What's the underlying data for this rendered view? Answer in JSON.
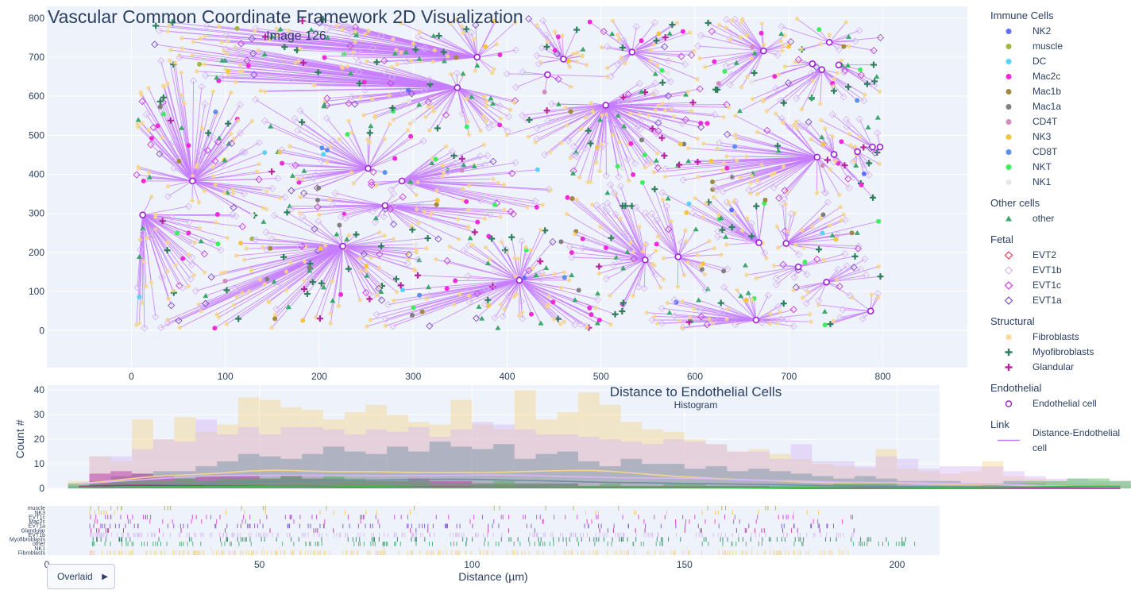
{
  "main": {
    "title": "Vascular Common Coordinate Framework 2D Visualization",
    "subtitle": "Image 126"
  },
  "histogram": {
    "title": "Distance to Endothelial Cells",
    "subtitle": "Histogram",
    "ylabel": "Count #",
    "xlabel": "Distance (µm)"
  },
  "button": {
    "label": "Overlaid",
    "arrow": "▶"
  },
  "legend": [
    {
      "title": "Immune Cells",
      "items": [
        {
          "name": "NK2",
          "symbol": "dot",
          "color": "#636efa"
        },
        {
          "name": "muscle",
          "symbol": "dot",
          "color": "#a3b347"
        },
        {
          "name": "DC",
          "symbol": "dot",
          "color": "#57d3f5"
        },
        {
          "name": "Mac2c",
          "symbol": "dot",
          "color": "#f229d9"
        },
        {
          "name": "Mac1b",
          "symbol": "dot",
          "color": "#a08a40"
        },
        {
          "name": "Mac1a",
          "symbol": "dot",
          "color": "#7f7f7f"
        },
        {
          "name": "CD4T",
          "symbol": "dot",
          "color": "#d48ac0"
        },
        {
          "name": "NK3",
          "symbol": "dot",
          "color": "#f7c43d"
        },
        {
          "name": "CD8T",
          "symbol": "dot",
          "color": "#5a8ff0"
        },
        {
          "name": "NKT",
          "symbol": "dot",
          "color": "#3bf05c"
        },
        {
          "name": "NK1",
          "symbol": "dot",
          "color": "#e6e6e6"
        }
      ]
    },
    {
      "title": "Other cells",
      "items": [
        {
          "name": "other",
          "symbol": "triangle",
          "color": "#3aa86b"
        }
      ]
    },
    {
      "title": "Fetal",
      "items": [
        {
          "name": "EVT2",
          "symbol": "diamond",
          "color": "#ef3b5a"
        },
        {
          "name": "EVT1b",
          "symbol": "diamond",
          "color": "#d7b8f5"
        },
        {
          "name": "EVT1c",
          "symbol": "diamond",
          "color": "#c33bd8"
        },
        {
          "name": "EVT1a",
          "symbol": "diamond",
          "color": "#7b4bc4"
        }
      ]
    },
    {
      "title": "Structural",
      "items": [
        {
          "name": "Fibroblasts",
          "symbol": "star",
          "color": "#f6d58b"
        },
        {
          "name": "Myofibroblasts",
          "symbol": "cross",
          "color": "#2e7d5b"
        },
        {
          "name": "Glandular",
          "symbol": "cross",
          "color": "#b5259f"
        }
      ]
    },
    {
      "title": "Endothelial",
      "items": [
        {
          "name": "Endothelial cell",
          "symbol": "ring",
          "color": "#9c1fd1"
        }
      ]
    },
    {
      "title": "Link",
      "items": [
        {
          "name": "Distance-Endothelial cell",
          "symbol": "line",
          "color": "#c77dff"
        }
      ]
    }
  ],
  "chart_data": [
    {
      "type": "scatter",
      "title": "Vascular Common Coordinate Framework 2D Visualization",
      "subtitle": "Image 126",
      "xlim": [
        -90,
        890
      ],
      "ylim": [
        -95,
        830
      ],
      "x_ticks": [
        0,
        100,
        200,
        300,
        400,
        500,
        600,
        700,
        800
      ],
      "y_ticks": [
        0,
        100,
        200,
        300,
        400,
        500,
        600,
        700,
        800
      ],
      "endothelial_cells": [
        {
          "x": 368,
          "y": 700
        },
        {
          "x": 460,
          "y": 695
        },
        {
          "x": 443,
          "y": 655
        },
        {
          "x": 347,
          "y": 622
        },
        {
          "x": 533,
          "y": 713
        },
        {
          "x": 505,
          "y": 577
        },
        {
          "x": 673,
          "y": 716
        },
        {
          "x": 743,
          "y": 738
        },
        {
          "x": 725,
          "y": 683
        },
        {
          "x": 753,
          "y": 680
        },
        {
          "x": 735,
          "y": 668
        },
        {
          "x": 65,
          "y": 383
        },
        {
          "x": 252,
          "y": 415
        },
        {
          "x": 288,
          "y": 383
        },
        {
          "x": 270,
          "y": 320
        },
        {
          "x": 12,
          "y": 296
        },
        {
          "x": 225,
          "y": 216
        },
        {
          "x": 413,
          "y": 129
        },
        {
          "x": 547,
          "y": 181
        },
        {
          "x": 582,
          "y": 189
        },
        {
          "x": 668,
          "y": 225
        },
        {
          "x": 697,
          "y": 223
        },
        {
          "x": 730,
          "y": 444
        },
        {
          "x": 748,
          "y": 451
        },
        {
          "x": 773,
          "y": 458
        },
        {
          "x": 789,
          "y": 470
        },
        {
          "x": 797,
          "y": 470
        },
        {
          "x": 710,
          "y": 163
        },
        {
          "x": 740,
          "y": 124
        },
        {
          "x": 665,
          "y": 27
        },
        {
          "x": 787,
          "y": 50
        }
      ],
      "grid": true,
      "legend_position": "right"
    },
    {
      "type": "bar",
      "mode": "overlay",
      "title": "Distance to Endothelial Cells",
      "subtitle": "Histogram",
      "xlabel": "Distance (µm)",
      "ylabel": "Count #",
      "xlim": [
        0,
        210
      ],
      "ylim": [
        0,
        42
      ],
      "x_ticks": [
        0,
        50,
        100,
        150,
        200
      ],
      "y_ticks": [
        0,
        10,
        20,
        30,
        40
      ],
      "bin_start": 5,
      "bin_width": 5,
      "series": [
        {
          "name": "Fibroblasts",
          "color": "#f6d58b",
          "values": [
            3,
            13,
            11,
            28,
            20,
            29,
            23,
            26,
            37,
            36,
            33,
            32,
            28,
            31,
            34,
            30,
            27,
            26,
            36,
            26,
            24,
            40,
            28,
            31,
            39,
            34,
            27,
            24,
            23,
            20,
            18,
            15,
            16,
            14,
            12,
            10,
            9,
            8,
            16,
            8,
            7,
            6,
            7,
            11,
            5,
            4,
            3,
            2,
            2,
            1
          ]
        },
        {
          "name": "EVT1b",
          "color": "#d7b8f5",
          "values": [
            2,
            13,
            13,
            16,
            20,
            19,
            28,
            22,
            25,
            22,
            25,
            25,
            24,
            22,
            24,
            23,
            25,
            21,
            24,
            27,
            26,
            24,
            22,
            22,
            21,
            20,
            19,
            18,
            20,
            19,
            18,
            15,
            15,
            12,
            18,
            11,
            11,
            9,
            13,
            12,
            8,
            9,
            9,
            9,
            7,
            5,
            4,
            4,
            3,
            3
          ]
        },
        {
          "name": "Myofibroblasts",
          "color": "#6d8fa0",
          "values": [
            1,
            3,
            5,
            6,
            7,
            7,
            9,
            11,
            14,
            13,
            12,
            14,
            17,
            15,
            14,
            17,
            15,
            19,
            17,
            16,
            18,
            12,
            14,
            15,
            11,
            9,
            12,
            10,
            10,
            8,
            9,
            7,
            8,
            7,
            6,
            5,
            4,
            5,
            4,
            3,
            3,
            3,
            2,
            2,
            3,
            2,
            1,
            1,
            1,
            0
          ]
        },
        {
          "name": "Glandular",
          "color": "#b5259f",
          "values": [
            0,
            6,
            7,
            6,
            5,
            4,
            5,
            5,
            5,
            4,
            5,
            4,
            4,
            3,
            3,
            3,
            4,
            3,
            3,
            2,
            2,
            2,
            2,
            2,
            1,
            1,
            1,
            1,
            1,
            1,
            1,
            1,
            1,
            0,
            0,
            0,
            0,
            0,
            0,
            0,
            0,
            0,
            0,
            0,
            0,
            0,
            0,
            0,
            0,
            0
          ]
        },
        {
          "name": "NKT",
          "color": "#3bb94a",
          "values": [
            2,
            2,
            3,
            3,
            3,
            4,
            3,
            4,
            4,
            4,
            5,
            4,
            5,
            4,
            3,
            3,
            3,
            2,
            2,
            2,
            3,
            2,
            2,
            2,
            1,
            2,
            1,
            1,
            2,
            2,
            1,
            1,
            1,
            1,
            1,
            1,
            2,
            2,
            2,
            1,
            1,
            1,
            1,
            2,
            2,
            3,
            3,
            4,
            4,
            3
          ]
        }
      ],
      "grid": true
    },
    {
      "type": "rug",
      "categories": [
        "muscle",
        "NK3",
        "EVT1c",
        "Mac2c",
        "EVT1a",
        "Glandular",
        "EVT1b",
        "Myofibroblasts",
        "other",
        "NK1",
        "Fibroblasts"
      ],
      "xlim": [
        0,
        210
      ],
      "xlabel": "Distance (µm)"
    }
  ]
}
